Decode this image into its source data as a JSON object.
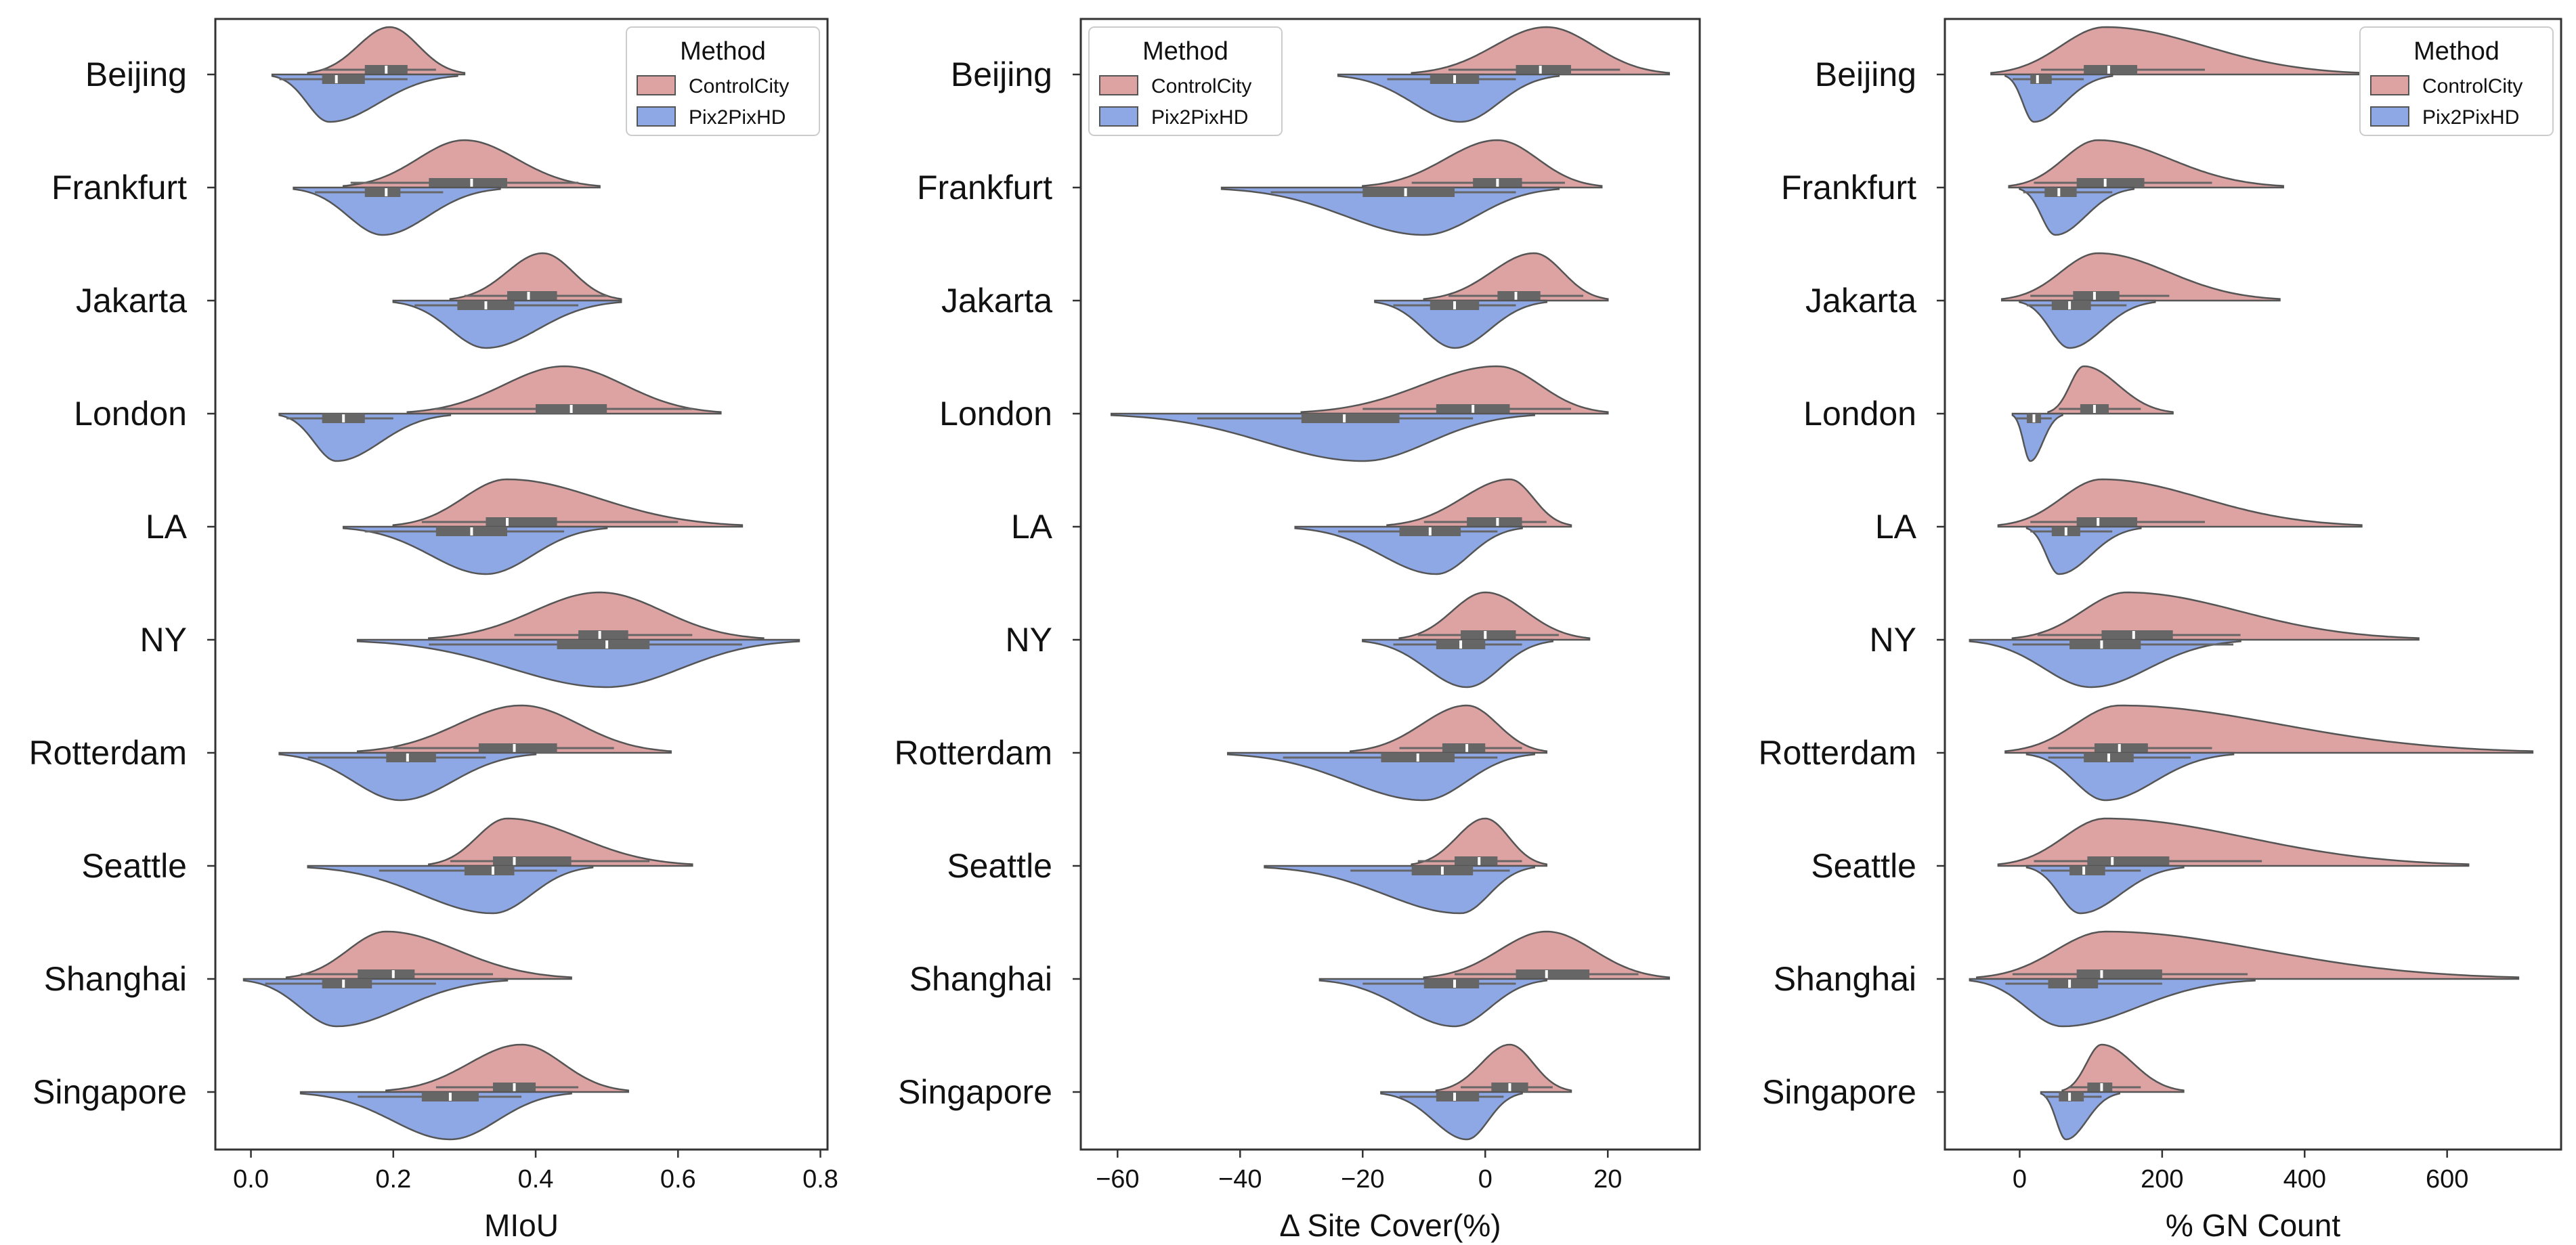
{
  "chart_data": [
    {
      "type": "violin",
      "orientation": "horizontal",
      "xlabel": "MIoU",
      "xlim": [
        -0.05,
        0.81
      ],
      "xticks": [
        0.0,
        0.2,
        0.4,
        0.6,
        0.8
      ],
      "xtick_labels": [
        "0.0",
        "0.2",
        "0.4",
        "0.6",
        "0.8"
      ],
      "legend": {
        "title": "Method",
        "location": "top-right",
        "entries": [
          "ControlCity",
          "Pix2PixHD"
        ]
      },
      "categories": [
        "Beijing",
        "Frankfurt",
        "Jakarta",
        "London",
        "LA",
        "NY",
        "Rotterdam",
        "Seattle",
        "Shanghai",
        "Singapore"
      ],
      "series": [
        {
          "name": "ControlCity",
          "color": "#dda3a3",
          "stats": [
            {
              "min": 0.08,
              "max": 0.3,
              "mode": 0.195,
              "q1": 0.16,
              "median": 0.19,
              "q3": 0.22,
              "wl": 0.1,
              "wh": 0.26
            },
            {
              "min": 0.13,
              "max": 0.49,
              "mode": 0.3,
              "q1": 0.25,
              "median": 0.31,
              "q3": 0.36,
              "wl": 0.14,
              "wh": 0.46
            },
            {
              "min": 0.28,
              "max": 0.52,
              "mode": 0.41,
              "q1": 0.36,
              "median": 0.39,
              "q3": 0.43,
              "wl": 0.3,
              "wh": 0.5
            },
            {
              "min": 0.22,
              "max": 0.66,
              "mode": 0.44,
              "q1": 0.4,
              "median": 0.45,
              "q3": 0.5,
              "wl": 0.26,
              "wh": 0.62
            },
            {
              "min": 0.2,
              "max": 0.69,
              "mode": 0.36,
              "q1": 0.33,
              "median": 0.36,
              "q3": 0.43,
              "wl": 0.24,
              "wh": 0.6
            },
            {
              "min": 0.25,
              "max": 0.72,
              "mode": 0.49,
              "q1": 0.46,
              "median": 0.49,
              "q3": 0.53,
              "wl": 0.37,
              "wh": 0.62
            },
            {
              "min": 0.15,
              "max": 0.59,
              "mode": 0.38,
              "q1": 0.32,
              "median": 0.37,
              "q3": 0.43,
              "wl": 0.2,
              "wh": 0.51
            },
            {
              "min": 0.25,
              "max": 0.62,
              "mode": 0.36,
              "q1": 0.34,
              "median": 0.37,
              "q3": 0.45,
              "wl": 0.28,
              "wh": 0.56
            },
            {
              "min": 0.05,
              "max": 0.45,
              "mode": 0.19,
              "q1": 0.15,
              "median": 0.2,
              "q3": 0.23,
              "wl": 0.07,
              "wh": 0.34
            },
            {
              "min": 0.19,
              "max": 0.53,
              "mode": 0.38,
              "q1": 0.34,
              "median": 0.37,
              "q3": 0.4,
              "wl": 0.26,
              "wh": 0.46
            }
          ]
        },
        {
          "name": "Pix2PixHD",
          "color": "#8ea8e6",
          "stats": [
            {
              "min": 0.03,
              "max": 0.29,
              "mode": 0.11,
              "q1": 0.1,
              "median": 0.12,
              "q3": 0.16,
              "wl": 0.04,
              "wh": 0.22
            },
            {
              "min": 0.06,
              "max": 0.35,
              "mode": 0.185,
              "q1": 0.16,
              "median": 0.19,
              "q3": 0.21,
              "wl": 0.09,
              "wh": 0.27
            },
            {
              "min": 0.2,
              "max": 0.52,
              "mode": 0.33,
              "q1": 0.29,
              "median": 0.33,
              "q3": 0.37,
              "wl": 0.23,
              "wh": 0.46
            },
            {
              "min": 0.04,
              "max": 0.28,
              "mode": 0.12,
              "q1": 0.1,
              "median": 0.13,
              "q3": 0.16,
              "wl": 0.05,
              "wh": 0.2
            },
            {
              "min": 0.13,
              "max": 0.5,
              "mode": 0.33,
              "q1": 0.26,
              "median": 0.31,
              "q3": 0.36,
              "wl": 0.16,
              "wh": 0.44
            },
            {
              "min": 0.15,
              "max": 0.77,
              "mode": 0.5,
              "q1": 0.43,
              "median": 0.5,
              "q3": 0.56,
              "wl": 0.25,
              "wh": 0.69
            },
            {
              "min": 0.04,
              "max": 0.4,
              "mode": 0.21,
              "q1": 0.19,
              "median": 0.22,
              "q3": 0.26,
              "wl": 0.08,
              "wh": 0.33
            },
            {
              "min": 0.08,
              "max": 0.48,
              "mode": 0.34,
              "q1": 0.3,
              "median": 0.34,
              "q3": 0.37,
              "wl": 0.18,
              "wh": 0.43
            },
            {
              "min": -0.01,
              "max": 0.36,
              "mode": 0.12,
              "q1": 0.1,
              "median": 0.13,
              "q3": 0.17,
              "wl": 0.02,
              "wh": 0.26
            },
            {
              "min": 0.07,
              "max": 0.45,
              "mode": 0.28,
              "q1": 0.24,
              "median": 0.28,
              "q3": 0.32,
              "wl": 0.15,
              "wh": 0.38
            }
          ]
        }
      ]
    },
    {
      "type": "violin",
      "orientation": "horizontal",
      "xlabel": "Δ Site Cover(%)",
      "xlim": [
        -66,
        35
      ],
      "xticks": [
        -60,
        -40,
        -20,
        0,
        20
      ],
      "xtick_labels": [
        "−60",
        "−40",
        "−20",
        "0",
        "20"
      ],
      "legend": {
        "title": "Method",
        "location": "top-left",
        "entries": [
          "ControlCity",
          "Pix2PixHD"
        ]
      },
      "categories": [
        "Beijing",
        "Frankfurt",
        "Jakarta",
        "London",
        "LA",
        "NY",
        "Rotterdam",
        "Seattle",
        "Shanghai",
        "Singapore"
      ],
      "series": [
        {
          "name": "ControlCity",
          "color": "#dda3a3",
          "stats": [
            {
              "min": -12,
              "max": 30,
              "mode": 10,
              "q1": 5,
              "median": 9,
              "q3": 14,
              "wl": -6,
              "wh": 22
            },
            {
              "min": -20,
              "max": 19,
              "mode": 2,
              "q1": -2,
              "median": 2,
              "q3": 6,
              "wl": -12,
              "wh": 13
            },
            {
              "min": -10,
              "max": 20,
              "mode": 8,
              "q1": 2,
              "median": 5,
              "q3": 9,
              "wl": -6,
              "wh": 16
            },
            {
              "min": -30,
              "max": 20,
              "mode": 2,
              "q1": -8,
              "median": -2,
              "q3": 4,
              "wl": -20,
              "wh": 14
            },
            {
              "min": -16,
              "max": 14,
              "mode": 4,
              "q1": -3,
              "median": 2,
              "q3": 6,
              "wl": -10,
              "wh": 10
            },
            {
              "min": -14,
              "max": 17,
              "mode": 0,
              "q1": -4,
              "median": 0,
              "q3": 5,
              "wl": -11,
              "wh": 12
            },
            {
              "min": -22,
              "max": 10,
              "mode": -3,
              "q1": -7,
              "median": -3,
              "q3": 0,
              "wl": -14,
              "wh": 6
            },
            {
              "min": -12,
              "max": 10,
              "mode": 0,
              "q1": -5,
              "median": -1,
              "q3": 2,
              "wl": -11,
              "wh": 6
            },
            {
              "min": -10,
              "max": 30,
              "mode": 10,
              "q1": 5,
              "median": 10,
              "q3": 17,
              "wl": -5,
              "wh": 25
            },
            {
              "min": -8,
              "max": 14,
              "mode": 4,
              "q1": 1,
              "median": 4,
              "q3": 7,
              "wl": -4,
              "wh": 11
            }
          ]
        },
        {
          "name": "Pix2PixHD",
          "color": "#8ea8e6",
          "stats": [
            {
              "min": -24,
              "max": 12,
              "mode": -4,
              "q1": -9,
              "median": -5,
              "q3": -1,
              "wl": -16,
              "wh": 5
            },
            {
              "min": -43,
              "max": 12,
              "mode": -10,
              "q1": -20,
              "median": -13,
              "q3": -5,
              "wl": -35,
              "wh": 5
            },
            {
              "min": -18,
              "max": 10,
              "mode": -5,
              "q1": -9,
              "median": -5,
              "q3": -1,
              "wl": -15,
              "wh": 5
            },
            {
              "min": -61,
              "max": 8,
              "mode": -20,
              "q1": -30,
              "median": -23,
              "q3": -14,
              "wl": -47,
              "wh": -2
            },
            {
              "min": -31,
              "max": 6,
              "mode": -8,
              "q1": -14,
              "median": -9,
              "q3": -4,
              "wl": -24,
              "wh": 2
            },
            {
              "min": -20,
              "max": 11,
              "mode": -3,
              "q1": -8,
              "median": -4,
              "q3": 0,
              "wl": -15,
              "wh": 6
            },
            {
              "min": -42,
              "max": 8,
              "mode": -10,
              "q1": -17,
              "median": -11,
              "q3": -5,
              "wl": -33,
              "wh": 2
            },
            {
              "min": -36,
              "max": 8,
              "mode": -4,
              "q1": -12,
              "median": -7,
              "q3": -2,
              "wl": -22,
              "wh": 4
            },
            {
              "min": -27,
              "max": 10,
              "mode": -5,
              "q1": -10,
              "median": -5,
              "q3": -1,
              "wl": -20,
              "wh": 5
            },
            {
              "min": -17,
              "max": 6,
              "mode": -3,
              "q1": -8,
              "median": -5,
              "q3": -1,
              "wl": -14,
              "wh": 3
            }
          ]
        }
      ]
    },
    {
      "type": "violin",
      "orientation": "horizontal",
      "xlabel": "% GN Count",
      "xlim": [
        -105,
        760
      ],
      "xticks": [
        0,
        200,
        400,
        600
      ],
      "xtick_labels": [
        "0",
        "200",
        "400",
        "600"
      ],
      "legend": {
        "title": "Method",
        "location": "top-right",
        "entries": [
          "ControlCity",
          "Pix2PixHD"
        ]
      },
      "categories": [
        "Beijing",
        "Frankfurt",
        "Jakarta",
        "London",
        "LA",
        "NY",
        "Rotterdam",
        "Seattle",
        "Shanghai",
        "Singapore"
      ],
      "series": [
        {
          "name": "ControlCity",
          "color": "#dda3a3",
          "stats": [
            {
              "min": -40,
              "max": 480,
              "mode": 120,
              "q1": 90,
              "median": 125,
              "q3": 165,
              "wl": 30,
              "wh": 260
            },
            {
              "min": -15,
              "max": 370,
              "mode": 110,
              "q1": 80,
              "median": 120,
              "q3": 175,
              "wl": 20,
              "wh": 270
            },
            {
              "min": -25,
              "max": 365,
              "mode": 110,
              "q1": 75,
              "median": 105,
              "q3": 140,
              "wl": 15,
              "wh": 210
            },
            {
              "min": 40,
              "max": 215,
              "mode": 90,
              "q1": 85,
              "median": 105,
              "q3": 125,
              "wl": 55,
              "wh": 170
            },
            {
              "min": -30,
              "max": 480,
              "mode": 115,
              "q1": 80,
              "median": 110,
              "q3": 165,
              "wl": 15,
              "wh": 260
            },
            {
              "min": -10,
              "max": 560,
              "mode": 150,
              "q1": 115,
              "median": 160,
              "q3": 215,
              "wl": 25,
              "wh": 310
            },
            {
              "min": -20,
              "max": 720,
              "mode": 140,
              "q1": 105,
              "median": 140,
              "q3": 180,
              "wl": 40,
              "wh": 270
            },
            {
              "min": -30,
              "max": 630,
              "mode": 120,
              "q1": 95,
              "median": 130,
              "q3": 210,
              "wl": 20,
              "wh": 340
            },
            {
              "min": -60,
              "max": 700,
              "mode": 120,
              "q1": 80,
              "median": 115,
              "q3": 200,
              "wl": -10,
              "wh": 320
            },
            {
              "min": 60,
              "max": 230,
              "mode": 115,
              "q1": 95,
              "median": 115,
              "q3": 130,
              "wl": 70,
              "wh": 170
            }
          ]
        },
        {
          "name": "Pix2PixHD",
          "color": "#8ea8e6",
          "stats": [
            {
              "min": -20,
              "max": 130,
              "mode": 20,
              "q1": 15,
              "median": 25,
              "q3": 45,
              "wl": -10,
              "wh": 90
            },
            {
              "min": 0,
              "max": 160,
              "mode": 50,
              "q1": 35,
              "median": 55,
              "q3": 80,
              "wl": 5,
              "wh": 130
            },
            {
              "min": 0,
              "max": 190,
              "mode": 70,
              "q1": 45,
              "median": 70,
              "q3": 100,
              "wl": 10,
              "wh": 150
            },
            {
              "min": -10,
              "max": 60,
              "mode": 15,
              "q1": 10,
              "median": 20,
              "q3": 30,
              "wl": -5,
              "wh": 45
            },
            {
              "min": 10,
              "max": 170,
              "mode": 55,
              "q1": 45,
              "median": 65,
              "q3": 85,
              "wl": 15,
              "wh": 130
            },
            {
              "min": -70,
              "max": 310,
              "mode": 100,
              "q1": 70,
              "median": 115,
              "q3": 170,
              "wl": -10,
              "wh": 300
            },
            {
              "min": 10,
              "max": 300,
              "mode": 120,
              "q1": 90,
              "median": 125,
              "q3": 160,
              "wl": 40,
              "wh": 240
            },
            {
              "min": 10,
              "max": 230,
              "mode": 85,
              "q1": 70,
              "median": 90,
              "q3": 120,
              "wl": 30,
              "wh": 170
            },
            {
              "min": -70,
              "max": 330,
              "mode": 60,
              "q1": 40,
              "median": 70,
              "q3": 110,
              "wl": -20,
              "wh": 200
            },
            {
              "min": 30,
              "max": 140,
              "mode": 65,
              "q1": 55,
              "median": 70,
              "q3": 90,
              "wl": 35,
              "wh": 115
            }
          ]
        }
      ]
    }
  ]
}
